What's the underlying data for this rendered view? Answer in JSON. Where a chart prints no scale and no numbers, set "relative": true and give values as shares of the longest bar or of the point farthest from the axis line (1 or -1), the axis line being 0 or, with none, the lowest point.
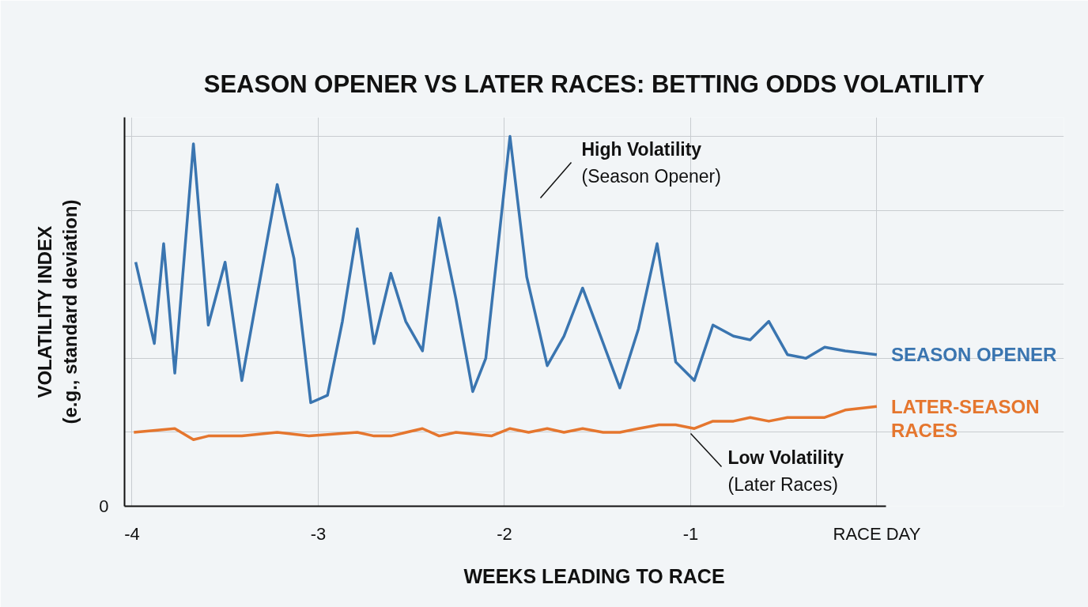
{
  "chart_data": {
    "type": "line",
    "title": "SEASON OPENER VS LATER RACES: BETTING ODDS VOLATILITY",
    "xlabel": "WEEKS LEADING TO RACE",
    "ylabel": "VOLATILITY INDEX\n(e.g., standard deviation)",
    "relative": true,
    "xlim": [
      -4.04,
      0.05
    ],
    "xticks": [
      -4,
      -3,
      -2,
      -1,
      {
        "value": 0,
        "label": "RACE DAY"
      }
    ],
    "grid": true,
    "legend": false,
    "line_style": "solid",
    "marker": "none",
    "annotations": [
      "High Volatility\n(Season Opener)",
      "Low Volatility\n(Later Races)",
      "0"
    ],
    "series": [
      {
        "name": "SEASON OPENER",
        "color": "#3a75b0",
        "x": [
          -3.98,
          -3.88,
          -3.83,
          -3.77,
          -3.67,
          -3.59,
          -3.5,
          -3.41,
          -3.22,
          -3.13,
          -3.04,
          -2.95,
          -2.87,
          -2.79,
          -2.7,
          -2.61,
          -2.53,
          -2.44,
          -2.35,
          -2.26,
          -2.17,
          -2.1,
          -1.97,
          -1.88,
          -1.77,
          -1.68,
          -1.58,
          -1.38,
          -1.28,
          -1.18,
          -1.08,
          -0.98,
          -0.88,
          -0.77,
          -0.68,
          -0.58,
          -0.48,
          -0.38,
          -0.28,
          -0.17,
          0
        ],
        "values": [
          0.66,
          0.44,
          0.71,
          0.36,
          0.98,
          0.49,
          0.66,
          0.34,
          0.87,
          0.67,
          0.28,
          0.3,
          0.5,
          0.75,
          0.44,
          0.63,
          0.5,
          0.42,
          0.78,
          0.56,
          0.31,
          0.4,
          1.0,
          0.62,
          0.38,
          0.46,
          0.59,
          0.32,
          0.48,
          0.71,
          0.39,
          0.34,
          0.49,
          0.46,
          0.45,
          0.5,
          0.41,
          0.4,
          0.43,
          0.42,
          0.41
        ]
      },
      {
        "name": "LATER-SEASON RACES",
        "color": "#e5762e",
        "x": [
          -3.99,
          -3.77,
          -3.67,
          -3.59,
          -3.5,
          -3.41,
          -3.22,
          -3.05,
          -2.79,
          -2.7,
          -2.61,
          -2.44,
          -2.35,
          -2.26,
          -2.07,
          -1.97,
          -1.87,
          -1.77,
          -1.68,
          -1.58,
          -1.47,
          -1.38,
          -1.28,
          -1.17,
          -1.08,
          -0.98,
          -0.88,
          -0.77,
          -0.68,
          -0.58,
          -0.48,
          -0.38,
          -0.28,
          -0.17,
          0
        ],
        "values": [
          0.2,
          0.21,
          0.18,
          0.19,
          0.19,
          0.19,
          0.2,
          0.19,
          0.2,
          0.19,
          0.19,
          0.21,
          0.19,
          0.2,
          0.19,
          0.21,
          0.2,
          0.21,
          0.2,
          0.21,
          0.2,
          0.2,
          0.21,
          0.22,
          0.22,
          0.21,
          0.23,
          0.23,
          0.24,
          0.23,
          0.24,
          0.24,
          0.24,
          0.26,
          0.27
        ]
      }
    ]
  }
}
